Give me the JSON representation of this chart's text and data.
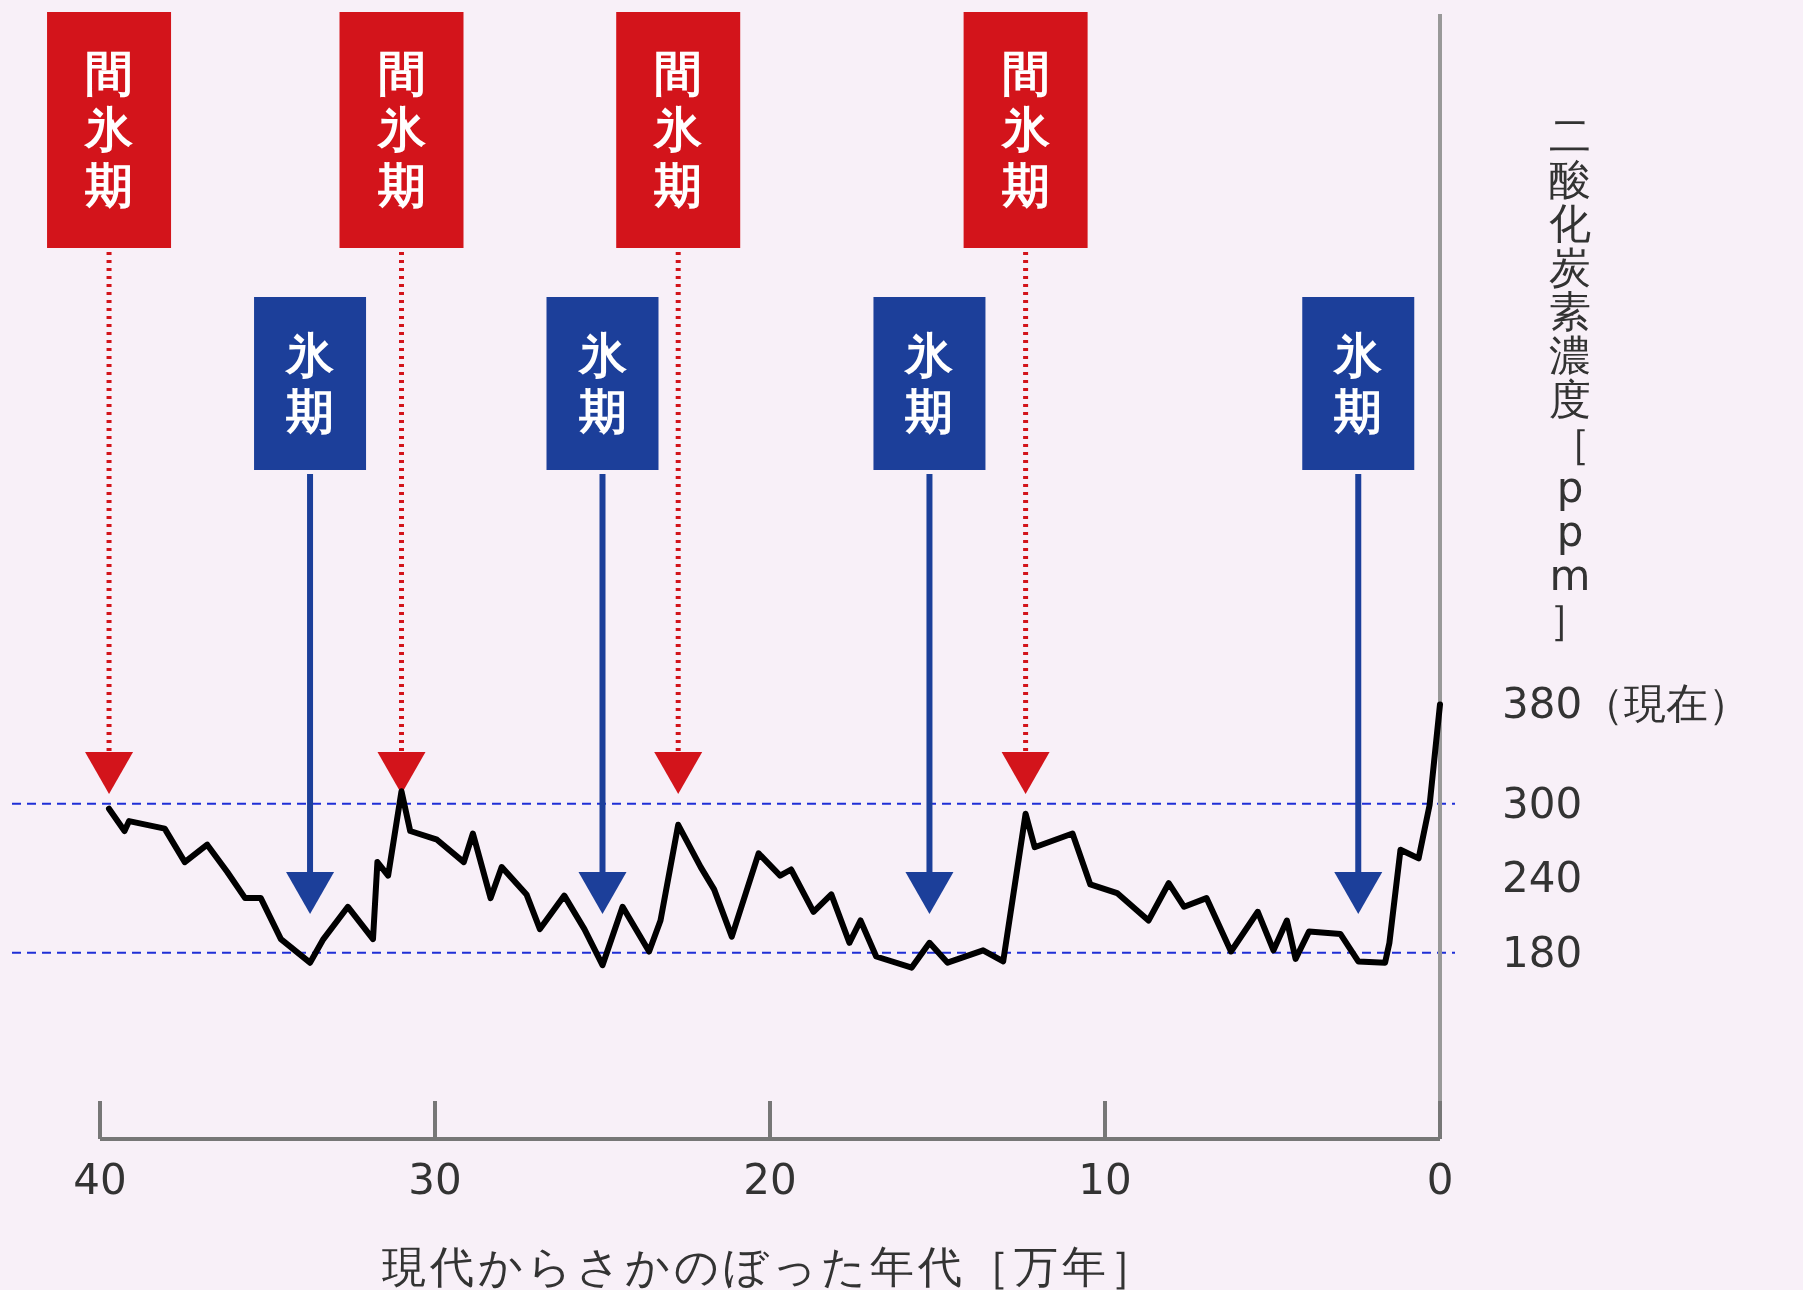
{
  "chart_data": {
    "type": "line",
    "xlabel": "現代からさかのぼった年代［万年］",
    "ylabel": "二酸化炭素濃度［ppm］",
    "xlim": [
      40,
      0
    ],
    "xticks": [
      40,
      30,
      20,
      10,
      0
    ],
    "ylim": [
      30,
      940
    ],
    "yticks": [
      180,
      240,
      300,
      {
        "value": 380,
        "label": "380（現在）"
      }
    ],
    "grid": false,
    "marker": "none",
    "line_style": "solid",
    "ref_lines": [
      {
        "axis": "y",
        "value": 300,
        "color": "#1f2fd6",
        "line_style": "dashed"
      },
      {
        "axis": "y",
        "value": 180,
        "color": "#1f2fd6",
        "line_style": "dashed"
      },
      {
        "axis": "x",
        "value": 39.73,
        "label": "間氷期",
        "color": "#d3141b",
        "line_style": "dotted"
      },
      {
        "axis": "x",
        "value": 31.0,
        "label": "間氷期",
        "color": "#d3141b",
        "line_style": "dotted"
      },
      {
        "axis": "x",
        "value": 22.74,
        "label": "間氷期",
        "color": "#d3141b",
        "line_style": "dotted"
      },
      {
        "axis": "x",
        "value": 12.37,
        "label": "間氷期",
        "color": "#d3141b",
        "line_style": "dotted"
      },
      {
        "axis": "x",
        "value": 33.73,
        "label": "氷期",
        "color": "#1c3f9a",
        "line_style": "solid"
      },
      {
        "axis": "x",
        "value": 25.0,
        "label": "氷期",
        "color": "#1c3f9a",
        "line_style": "solid"
      },
      {
        "axis": "x",
        "value": 15.24,
        "label": "氷期",
        "color": "#1c3f9a",
        "line_style": "solid"
      },
      {
        "axis": "x",
        "value": 2.44,
        "label": "氷期",
        "color": "#1c3f9a",
        "line_style": "solid"
      }
    ],
    "series": [
      {
        "color": "#000000",
        "x": [
          39.73,
          39.27,
          39.13,
          38.07,
          37.47,
          36.8,
          36.2,
          35.67,
          35.2,
          34.6,
          33.73,
          33.33,
          32.6,
          31.85,
          31.72,
          31.4,
          31.0,
          30.74,
          29.94,
          29.14,
          28.87,
          28.34,
          28.01,
          27.27,
          26.87,
          26.14,
          25.54,
          25.0,
          24.4,
          23.61,
          23.27,
          22.74,
          22.07,
          21.67,
          21.14,
          20.34,
          19.7,
          19.37,
          18.7,
          18.17,
          17.63,
          17.3,
          16.83,
          15.77,
          15.24,
          14.7,
          13.64,
          13.04,
          12.37,
          12.1,
          10.97,
          10.44,
          9.64,
          8.7,
          8.1,
          7.64,
          6.97,
          6.24,
          5.44,
          4.97,
          4.57,
          4.31,
          3.91,
          2.97,
          2.44,
          1.64,
          1.51,
          1.18,
          0.64,
          0.31,
          0
        ],
        "values": [
          296,
          278,
          286,
          280,
          253,
          267,
          245,
          224,
          224,
          191,
          172,
          191,
          217,
          191,
          253,
          242,
          310,
          278,
          271,
          253,
          276,
          224,
          249,
          227,
          199,
          226,
          199,
          170,
          217,
          181,
          206,
          283,
          249,
          231,
          193,
          260,
          242,
          247,
          213,
          227,
          188,
          206,
          177,
          168,
          188,
          172,
          182,
          173,
          292,
          265,
          276,
          235,
          228,
          206,
          236,
          217,
          224,
          181,
          213,
          182,
          206,
          175,
          197,
          195,
          173,
          172,
          188,
          263,
          256,
          299,
          380
        ]
      }
    ]
  }
}
